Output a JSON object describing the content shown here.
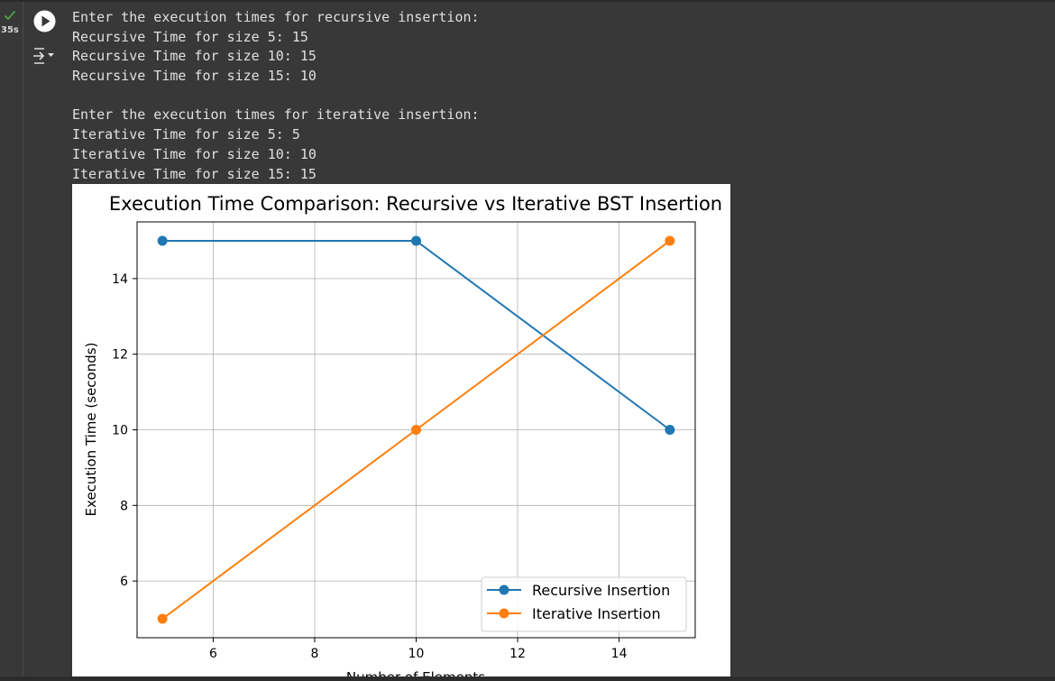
{
  "cell": {
    "status_icon": "check-icon",
    "status_color": "#4caf50",
    "elapsed": "35s",
    "run_icon": "play-icon",
    "output_toggle_icon": "output-collapse-icon"
  },
  "output": {
    "lines": [
      "Enter the execution times for recursive insertion:",
      "Recursive Time for size 5: 15",
      "Recursive Time for size 10: 15",
      "Recursive Time for size 15: 10",
      "",
      "Enter the execution times for iterative insertion:",
      "Iterative Time for size 5: 5",
      "Iterative Time for size 10: 10",
      "Iterative Time for size 15: 15"
    ]
  },
  "chart_data": {
    "type": "line",
    "title": "Execution Time Comparison: Recursive vs Iterative BST Insertion",
    "xlabel": "Number of Elements",
    "ylabel": "Execution Time (seconds)",
    "x": [
      5,
      10,
      15
    ],
    "series": [
      {
        "name": "Recursive Insertion",
        "values": [
          15,
          15,
          10
        ],
        "color": "#1f77b4",
        "marker": "circle"
      },
      {
        "name": "Iterative Insertion",
        "values": [
          5,
          10,
          15
        ],
        "color": "#ff7f0e",
        "marker": "circle"
      }
    ],
    "xlim": [
      4.5,
      15.5
    ],
    "ylim": [
      4.5,
      15.5
    ],
    "xticks": [
      6,
      8,
      10,
      12,
      14
    ],
    "yticks": [
      6,
      8,
      10,
      12,
      14
    ],
    "grid": true,
    "legend_position": "lower-right"
  }
}
